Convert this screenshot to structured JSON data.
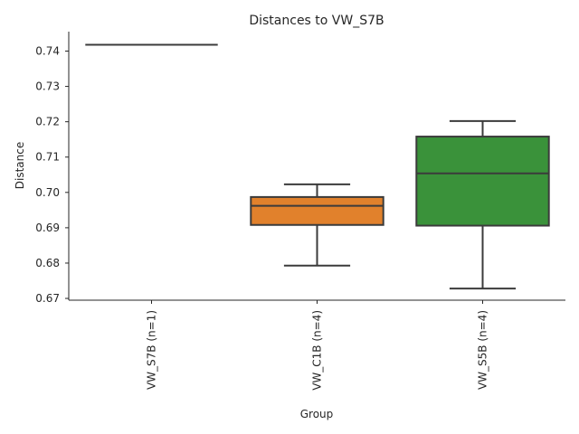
{
  "chart_data": {
    "type": "box",
    "title": "Distances to VW_S7B",
    "xlabel": "Group",
    "ylabel": "Distance",
    "ylim": [
      0.6695,
      0.7455
    ],
    "yticks": [
      0.67,
      0.68,
      0.69,
      0.7,
      0.71,
      0.72,
      0.73,
      0.74
    ],
    "ytick_labels": [
      "0.67",
      "0.68",
      "0.69",
      "0.70",
      "0.71",
      "0.72",
      "0.73",
      "0.74"
    ],
    "grid": false,
    "categories": [
      "VW_S7B (n=1)",
      "VW_C1B (n=4)",
      "VW_S5B (n=4)"
    ],
    "boxes": [
      {
        "label": "VW_S7B (n=1)",
        "min": 0.7418,
        "q1": 0.7418,
        "median": 0.7418,
        "q3": 0.7418,
        "max": 0.7418,
        "color": "#3274a1"
      },
      {
        "label": "VW_C1B (n=4)",
        "min": 0.6793,
        "q1": 0.6908,
        "median": 0.6962,
        "q3": 0.6987,
        "max": 0.7023,
        "color": "#e1812c"
      },
      {
        "label": "VW_S5B (n=4)",
        "min": 0.6728,
        "q1": 0.6906,
        "median": 0.7054,
        "q3": 0.7158,
        "max": 0.7202,
        "color": "#3a923a"
      }
    ]
  }
}
